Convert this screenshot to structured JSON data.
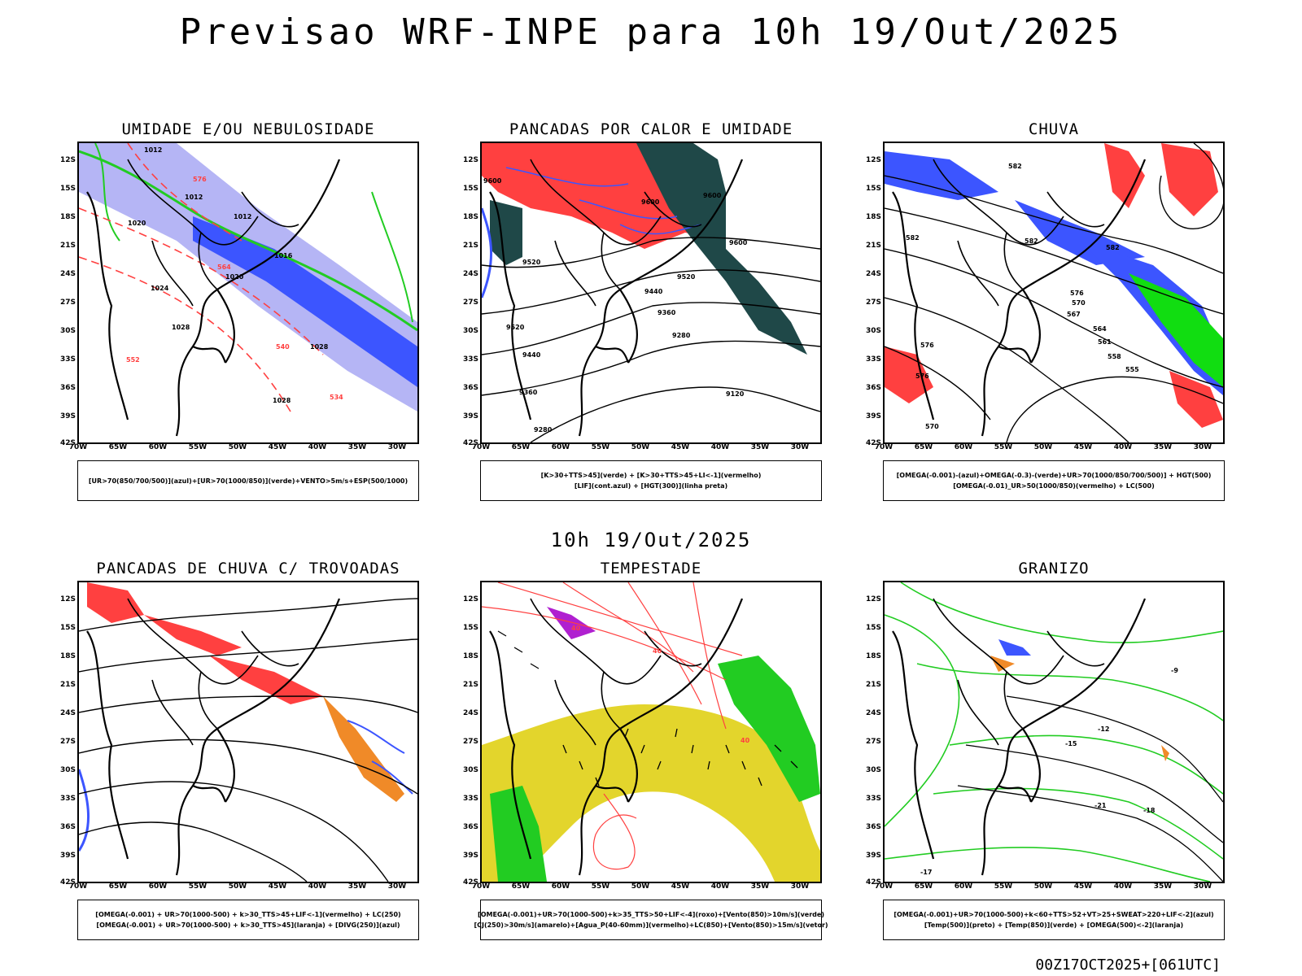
{
  "header": {
    "title": "Previsao WRF-INPE  para 10h 19/Out/2025"
  },
  "mid_title": "10h 19/Out/2025",
  "footer": "00Z17OCT2025+[061UTC]",
  "axes": {
    "lat_ticks": [
      "12S",
      "15S",
      "18S",
      "21S",
      "24S",
      "27S",
      "30S",
      "33S",
      "36S",
      "39S",
      "42S"
    ],
    "lon_ticks": [
      "70W",
      "65W",
      "60W",
      "55W",
      "50W",
      "45W",
      "40W",
      "35W",
      "30W"
    ]
  },
  "colors": {
    "blue": "#3c55ff",
    "lavender": "#b5b5f5",
    "green": "#22cc22",
    "bright_green": "#11dd11",
    "red": "#ff4040",
    "dark_teal": "#1f4848",
    "orange": "#f08a28",
    "yellow": "#e3d52c",
    "purple": "#b020d0",
    "black": "#000000"
  },
  "panels": [
    {
      "id": "umidade",
      "title": "UMIDADE E/OU NEBULOSIDADE",
      "legend": [
        "[UR>70(850/700/500)](azul)+[UR>70(1000/850)](verde)+VENTO>5m/s+ESP(500/1000)"
      ],
      "labels": [
        "1012",
        "1012",
        "1012",
        "1020",
        "1024",
        "1028",
        "1028",
        "1028",
        "1020",
        "1016",
        "576",
        "564",
        "552",
        "540",
        "534"
      ]
    },
    {
      "id": "pancadas-calor",
      "title": "PANCADAS POR CALOR E UMIDADE",
      "legend": [
        "[K>30+TTS>45](verde) + [K>30+TTS>45+LI<-1](vermelho)",
        "[LIF](cont.azul) + [HGT(300)](linha preta)"
      ],
      "labels": [
        "9600",
        "9600",
        "9600",
        "9600",
        "9520",
        "9520",
        "9520",
        "9440",
        "9440",
        "9360",
        "9360",
        "9280",
        "9280",
        "9120"
      ]
    },
    {
      "id": "chuva",
      "title": "CHUVA",
      "legend": [
        "[OMEGA(-0.001)-(azul)+OMEGA(-0.3)-(verde)+UR>70(1000/850/700/500)] + HGT(500)",
        "[OMEGA(-0.01)_UR>50(1000/850)(vermelho) + LC(500)"
      ],
      "labels": [
        "582",
        "582",
        "582",
        "582",
        "576",
        "576",
        "576",
        "570",
        "570",
        "567",
        "564",
        "561",
        "558",
        "555"
      ]
    },
    {
      "id": "pancadas-trovoadas",
      "title": "PANCADAS DE CHUVA C/ TROVOADAS",
      "legend": [
        "[OMEGA(-0.001) + UR>70(1000-500) + k>30_TTS>45+LIF<-1](vermelho) + LC(250)",
        "[OMEGA(-0.001) + UR>70(1000-500) + k>30_TTS>45](laranja) + [DIVG(250)](azul)"
      ],
      "labels": []
    },
    {
      "id": "tempestade",
      "title": "TEMPESTADE",
      "legend": [
        "[OMEGA(-0.001)+UR>70(1000-500)+k>35_TTS>50+LIF<-4](roxo)+[Vento(850)>10m/s](verde)",
        "[CJ(250)>30m/s](amarelo)+[Agua_P(40-60mm)](vermelho)+LC(850)+[Vento(850)>15m/s](vetor)"
      ],
      "labels": [
        "40",
        "40",
        "40"
      ]
    },
    {
      "id": "granizo",
      "title": "GRANIZO",
      "legend": [
        "[OMEGA(-0.001)+UR>70(1000-500)+k<60+TTS>52+VT>25+SWEAT>220+LIF<-2](azul)",
        "[Temp(500)](preto) + [Temp(850)](verde) + [OMEGA(500)<-2](laranja)"
      ],
      "labels": [
        "-12",
        "-15",
        "-18",
        "-21",
        "-9",
        "-17"
      ]
    }
  ]
}
